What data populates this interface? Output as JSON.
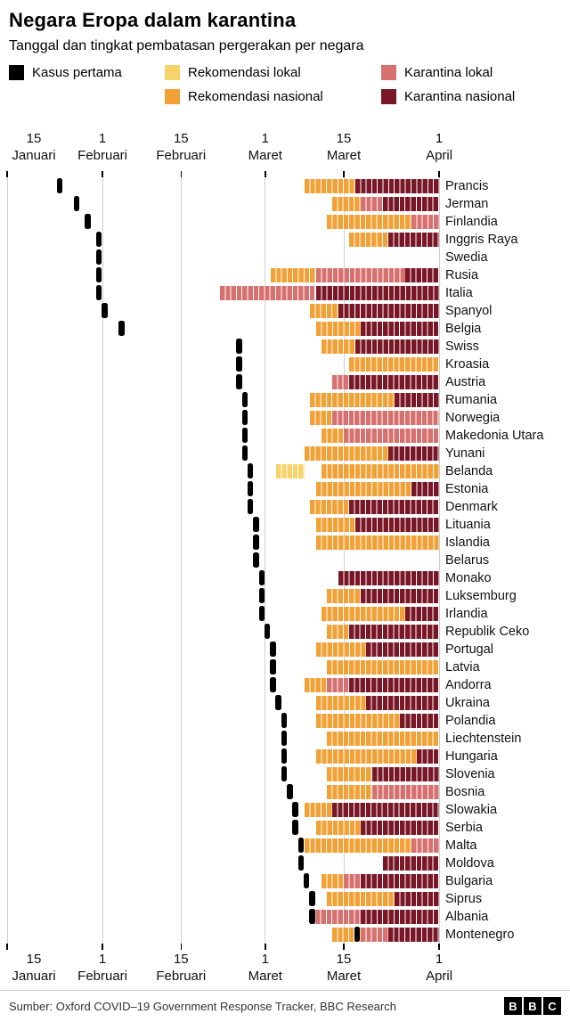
{
  "title": "Negara Eropa dalam karantina",
  "subtitle": "Tanggal dan tingkat pembatasan pergerakan per negara",
  "legend": {
    "col1": [
      {
        "key": "first_case",
        "label": "Kasus pertama"
      }
    ],
    "col2": [
      {
        "key": "reklok",
        "label": "Rekomendasi lokal"
      },
      {
        "key": "reknas",
        "label": "Rekomendasi nasional"
      }
    ],
    "col3": [
      {
        "key": "karlok",
        "label": "Karantina lokal"
      },
      {
        "key": "karnas",
        "label": "Karantina nasional"
      }
    ]
  },
  "colors": {
    "first_case": "#000000",
    "reklok": "#F8D26A",
    "reknas": "#F2A136",
    "karlok": "#D6716F",
    "karnas": "#7A1726",
    "grid": "#CFCFCF"
  },
  "axis": {
    "day_zero": "15 Januari",
    "total_days": 77,
    "ticks": [
      {
        "day": 0,
        "top": "15",
        "bottom": "Januari"
      },
      {
        "day": 17,
        "top": "1",
        "bottom": "Februari"
      },
      {
        "day": 31,
        "top": "15",
        "bottom": "Februari"
      },
      {
        "day": 46,
        "top": "1",
        "bottom": "Maret"
      },
      {
        "day": 60,
        "top": "15",
        "bottom": "Maret"
      },
      {
        "day": 77,
        "top": "1",
        "bottom": "April"
      }
    ]
  },
  "chart_data": {
    "type": "timeline",
    "unit": "days since 15 January 2020 (day 0 = 15 Jan, day 77 = 1 Apr)",
    "levels": {
      "first_case": "Kasus pertama",
      "reklok": "Rekomendasi lokal",
      "reknas": "Rekomendasi nasional",
      "karlok": "Karantina lokal",
      "karnas": "Karantina nasional"
    },
    "countries": [
      {
        "name": "Prancis",
        "first_case": 9,
        "segments": [
          [
            "reknas",
            53,
            62
          ],
          [
            "karnas",
            62,
            77
          ]
        ]
      },
      {
        "name": "Jerman",
        "first_case": 12,
        "segments": [
          [
            "reknas",
            58,
            63
          ],
          [
            "karlok",
            63,
            67
          ],
          [
            "karnas",
            67,
            77
          ]
        ]
      },
      {
        "name": "Finlandia",
        "first_case": 14,
        "segments": [
          [
            "reknas",
            57,
            72
          ],
          [
            "karlok",
            72,
            77
          ]
        ]
      },
      {
        "name": "Inggris Raya",
        "first_case": 16,
        "segments": [
          [
            "reknas",
            61,
            68
          ],
          [
            "karnas",
            68,
            77
          ]
        ]
      },
      {
        "name": "Swedia",
        "first_case": 16,
        "segments": []
      },
      {
        "name": "Rusia",
        "first_case": 16,
        "segments": [
          [
            "reknas",
            47,
            55
          ],
          [
            "karlok",
            55,
            71
          ],
          [
            "karnas",
            71,
            77
          ]
        ]
      },
      {
        "name": "Italia",
        "first_case": 16,
        "segments": [
          [
            "karlok",
            38,
            55
          ],
          [
            "karnas",
            55,
            77
          ]
        ]
      },
      {
        "name": "Spanyol",
        "first_case": 17,
        "segments": [
          [
            "reknas",
            54,
            59
          ],
          [
            "karnas",
            59,
            77
          ]
        ]
      },
      {
        "name": "Belgia",
        "first_case": 20,
        "segments": [
          [
            "reknas",
            55,
            63
          ],
          [
            "karnas",
            63,
            77
          ]
        ]
      },
      {
        "name": "Swiss",
        "first_case": 41,
        "segments": [
          [
            "reknas",
            56,
            62
          ],
          [
            "karnas",
            62,
            77
          ]
        ]
      },
      {
        "name": "Kroasia",
        "first_case": 41,
        "segments": [
          [
            "reknas",
            61,
            77
          ]
        ]
      },
      {
        "name": "Austria",
        "first_case": 41,
        "segments": [
          [
            "karlok",
            58,
            61
          ],
          [
            "karnas",
            61,
            77
          ]
        ]
      },
      {
        "name": "Rumania",
        "first_case": 42,
        "segments": [
          [
            "reknas",
            54,
            69
          ],
          [
            "karnas",
            69,
            77
          ]
        ]
      },
      {
        "name": "Norwegia",
        "first_case": 42,
        "segments": [
          [
            "reknas",
            54,
            58
          ],
          [
            "karlok",
            58,
            77
          ]
        ]
      },
      {
        "name": "Makedonia Utara",
        "first_case": 42,
        "segments": [
          [
            "reknas",
            56,
            60
          ],
          [
            "karlok",
            60,
            77
          ]
        ]
      },
      {
        "name": "Yunani",
        "first_case": 42,
        "segments": [
          [
            "reknas",
            53,
            68
          ],
          [
            "karnas",
            68,
            77
          ]
        ]
      },
      {
        "name": "Belanda",
        "first_case": 43,
        "segments": [
          [
            "reklok",
            48,
            53
          ],
          [
            "reknas",
            56,
            77
          ]
        ]
      },
      {
        "name": "Estonia",
        "first_case": 43,
        "segments": [
          [
            "reknas",
            55,
            72
          ],
          [
            "karnas",
            72,
            77
          ]
        ]
      },
      {
        "name": "Denmark",
        "first_case": 43,
        "segments": [
          [
            "reknas",
            54,
            61
          ],
          [
            "karnas",
            61,
            77
          ]
        ]
      },
      {
        "name": "Lituania",
        "first_case": 44,
        "segments": [
          [
            "reknas",
            55,
            62
          ],
          [
            "karnas",
            62,
            77
          ]
        ]
      },
      {
        "name": "Islandia",
        "first_case": 44,
        "segments": [
          [
            "reknas",
            55,
            77
          ]
        ]
      },
      {
        "name": "Belarus",
        "first_case": 44,
        "segments": []
      },
      {
        "name": "Monako",
        "first_case": 45,
        "segments": [
          [
            "karnas",
            59,
            77
          ]
        ]
      },
      {
        "name": "Luksemburg",
        "first_case": 45,
        "segments": [
          [
            "reknas",
            57,
            63
          ],
          [
            "karnas",
            63,
            77
          ]
        ]
      },
      {
        "name": "Irlandia",
        "first_case": 45,
        "segments": [
          [
            "reknas",
            56,
            71
          ],
          [
            "karnas",
            71,
            77
          ]
        ]
      },
      {
        "name": "Republik Ceko",
        "first_case": 46,
        "segments": [
          [
            "reknas",
            57,
            61
          ],
          [
            "karnas",
            61,
            77
          ]
        ]
      },
      {
        "name": "Portugal",
        "first_case": 47,
        "segments": [
          [
            "reknas",
            55,
            64
          ],
          [
            "karnas",
            64,
            77
          ]
        ]
      },
      {
        "name": "Latvia",
        "first_case": 47,
        "segments": [
          [
            "reknas",
            57,
            77
          ]
        ]
      },
      {
        "name": "Andorra",
        "first_case": 47,
        "segments": [
          [
            "reknas",
            53,
            57
          ],
          [
            "karlok",
            57,
            61
          ],
          [
            "karnas",
            61,
            77
          ]
        ]
      },
      {
        "name": "Ukraina",
        "first_case": 48,
        "segments": [
          [
            "reknas",
            55,
            64
          ],
          [
            "karnas",
            64,
            77
          ]
        ]
      },
      {
        "name": "Polandia",
        "first_case": 49,
        "segments": [
          [
            "reknas",
            55,
            70
          ],
          [
            "karnas",
            70,
            77
          ]
        ]
      },
      {
        "name": "Liechtenstein",
        "first_case": 49,
        "segments": [
          [
            "reknas",
            57,
            77
          ]
        ]
      },
      {
        "name": "Hungaria",
        "first_case": 49,
        "segments": [
          [
            "reknas",
            55,
            73
          ],
          [
            "karnas",
            73,
            77
          ]
        ]
      },
      {
        "name": "Slovenia",
        "first_case": 49,
        "segments": [
          [
            "reknas",
            57,
            65
          ],
          [
            "karnas",
            65,
            77
          ]
        ]
      },
      {
        "name": "Bosnia",
        "first_case": 50,
        "segments": [
          [
            "reknas",
            57,
            65
          ],
          [
            "karlok",
            65,
            77
          ]
        ]
      },
      {
        "name": "Slowakia",
        "first_case": 51,
        "segments": [
          [
            "reknas",
            53,
            58
          ],
          [
            "karnas",
            58,
            77
          ]
        ]
      },
      {
        "name": "Serbia",
        "first_case": 51,
        "segments": [
          [
            "reknas",
            55,
            63
          ],
          [
            "karnas",
            63,
            77
          ]
        ]
      },
      {
        "name": "Malta",
        "first_case": 52,
        "segments": [
          [
            "reknas",
            53,
            72
          ],
          [
            "karlok",
            72,
            77
          ]
        ]
      },
      {
        "name": "Moldova",
        "first_case": 52,
        "segments": [
          [
            "karnas",
            67,
            77
          ]
        ]
      },
      {
        "name": "Bulgaria",
        "first_case": 53,
        "segments": [
          [
            "reknas",
            56,
            60
          ],
          [
            "karlok",
            60,
            63
          ],
          [
            "karnas",
            63,
            77
          ]
        ]
      },
      {
        "name": "Siprus",
        "first_case": 54,
        "segments": [
          [
            "reknas",
            57,
            69
          ],
          [
            "karnas",
            69,
            77
          ]
        ]
      },
      {
        "name": "Albania",
        "first_case": 54,
        "segments": [
          [
            "karlok",
            54,
            63
          ],
          [
            "karnas",
            63,
            77
          ]
        ]
      },
      {
        "name": "Montenegro",
        "first_case": 62,
        "segments": [
          [
            "reknas",
            58,
            63
          ],
          [
            "karlok",
            63,
            68
          ],
          [
            "karnas",
            68,
            77
          ]
        ]
      }
    ]
  },
  "footer": {
    "source": "Sumber: Oxford COVID–19 Government Response Tracker, BBC Research",
    "logo_letters": [
      "B",
      "B",
      "C"
    ]
  }
}
